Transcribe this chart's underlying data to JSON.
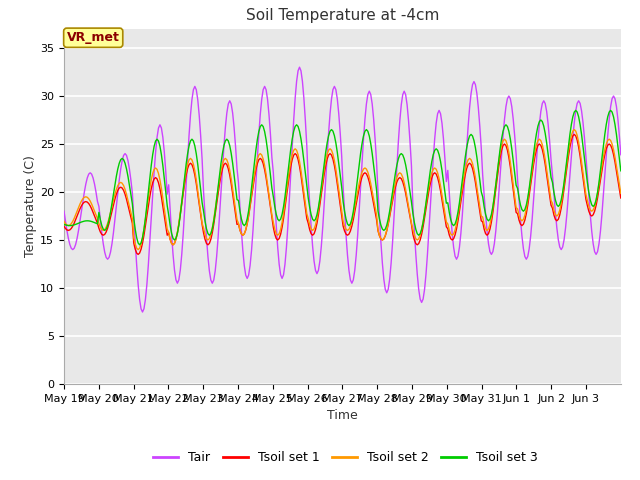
{
  "title": "Soil Temperature at -4cm",
  "xlabel": "Time",
  "ylabel": "Temperature (C)",
  "ylim": [
    0,
    37
  ],
  "yticks": [
    0,
    5,
    10,
    15,
    20,
    25,
    30,
    35
  ],
  "annotation_text": "VR_met",
  "annotation_color": "#8B0000",
  "annotation_bg": "#FFFF99",
  "line_colors": {
    "Tair": "#CC44FF",
    "Tsoil set 1": "#FF0000",
    "Tsoil set 2": "#FF9900",
    "Tsoil set 3": "#00CC00"
  },
  "outer_bg": "#FFFFFF",
  "plot_bg": "#E8E8E8",
  "grid_color": "#FFFFFF",
  "num_days": 16,
  "title_fontsize": 11,
  "axis_label_fontsize": 9,
  "tick_fontsize": 8,
  "legend_fontsize": 9,
  "day_labels": [
    "May 19",
    "May 20",
    "May 21",
    "May 22",
    "May 23",
    "May 24",
    "May 25",
    "May 26",
    "May 27",
    "May 28",
    "May 29",
    "May 30",
    "May 31",
    "Jun 1",
    "Jun 2",
    "Jun 3"
  ]
}
